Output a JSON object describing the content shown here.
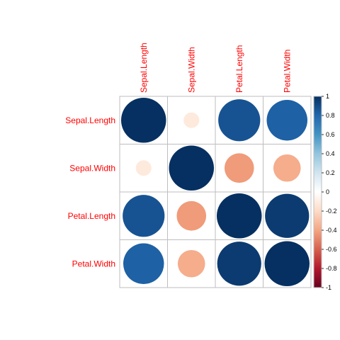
{
  "chart_data": {
    "type": "heatmap",
    "method": "circle",
    "variables": [
      "Sepal.Length",
      "Sepal.Width",
      "Petal.Length",
      "Petal.Width"
    ],
    "matrix": [
      [
        1.0,
        -0.12,
        0.87,
        0.82
      ],
      [
        -0.12,
        1.0,
        -0.43,
        -0.37
      ],
      [
        0.87,
        -0.43,
        1.0,
        0.96
      ],
      [
        0.82,
        -0.37,
        0.96,
        1.0
      ]
    ],
    "color_scale": {
      "range": [
        -1,
        1
      ],
      "ticks": [
        "-1",
        "-0.8",
        "-0.6",
        "-0.4",
        "-0.2",
        "0",
        "0.2",
        "0.4",
        "0.6",
        "0.8",
        "1"
      ],
      "stops": [
        "#67001F",
        "#B2182B",
        "#D6604D",
        "#F4A582",
        "#FDDBC7",
        "#FFFFFF",
        "#D1E5F0",
        "#92C5DE",
        "#4393C3",
        "#2166AC",
        "#053061"
      ]
    },
    "label_color": "#FF0000",
    "grid_color": "#BEBEBE",
    "legend_position": "right"
  }
}
